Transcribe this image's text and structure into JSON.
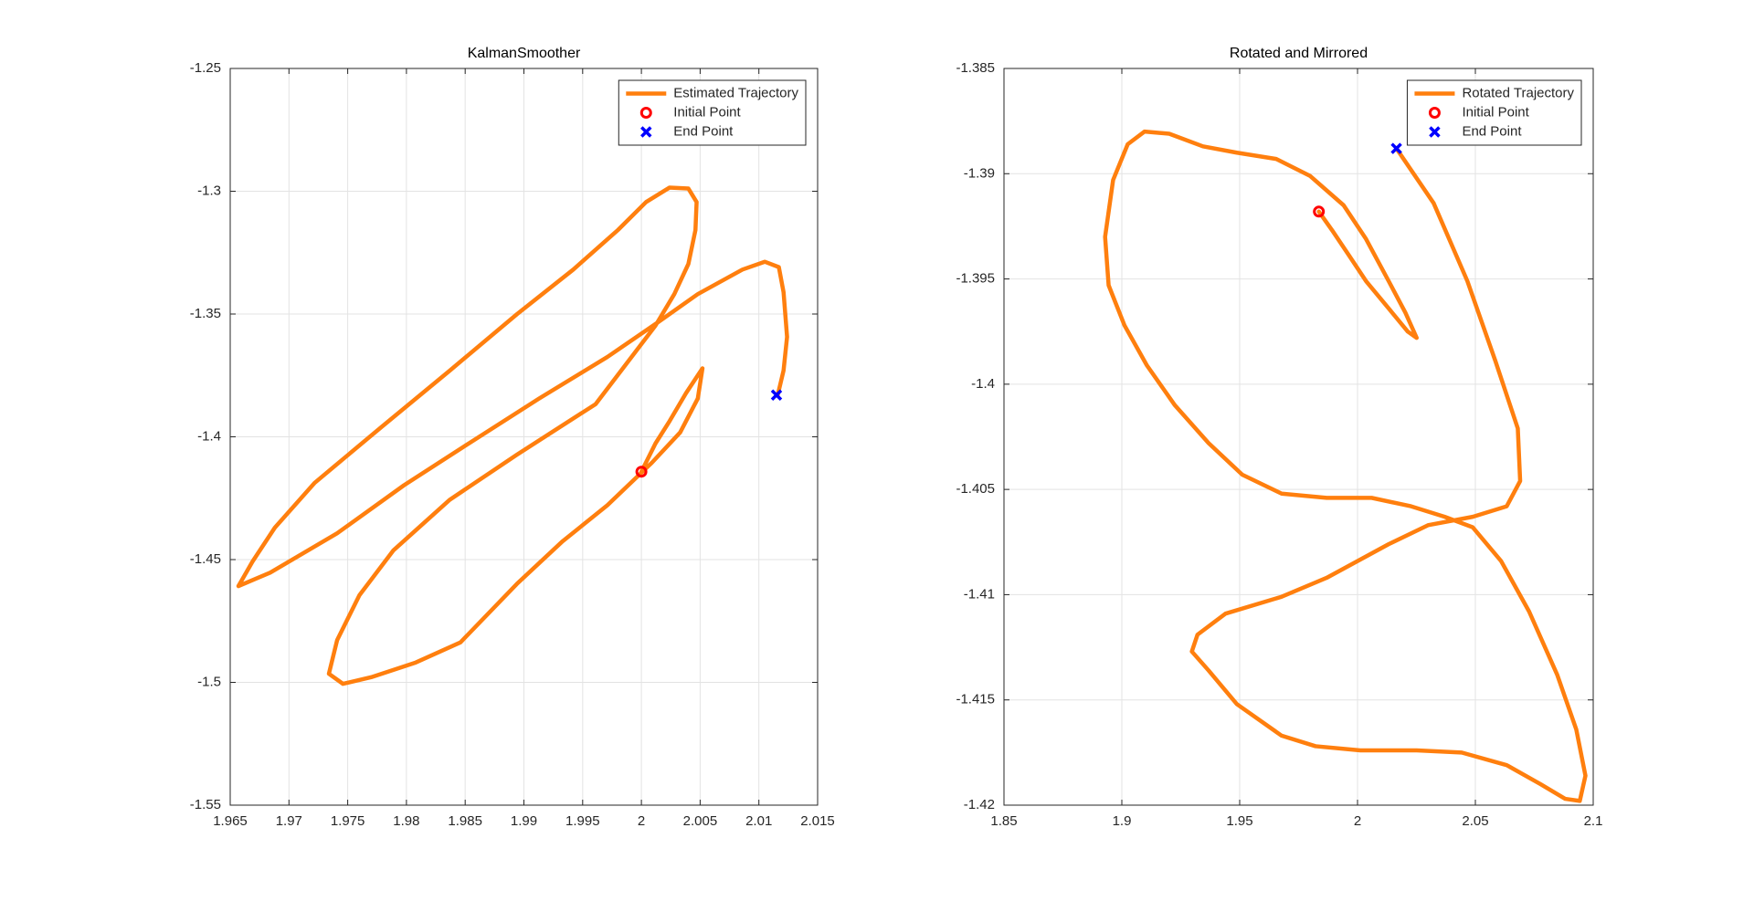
{
  "chart_data": [
    {
      "type": "line",
      "title": "KalmanSmoother",
      "grid": true,
      "legend": "northeast",
      "xlim": [
        1.965,
        2.015
      ],
      "xticks": [
        1.965,
        1.97,
        1.975,
        1.98,
        1.985,
        1.99,
        1.995,
        2,
        2.005,
        2.01,
        2.015
      ],
      "ylim": [
        -1.55,
        -1.25
      ],
      "yticks": [
        -1.55,
        -1.5,
        -1.45,
        -1.4,
        -1.35,
        -1.3,
        -1.25
      ],
      "series": [
        {
          "name": "Estimated Trajectory",
          "color": "#ff7f0e",
          "marker": "none",
          "x": [
            2.0,
            2.0012,
            2.0024,
            2.0038,
            2.0052,
            2.0048,
            2.0033,
            2.0009,
            1.9971,
            1.9933,
            1.9894,
            1.9846,
            1.9808,
            1.977,
            1.9746,
            1.9734,
            1.9741,
            1.976,
            1.9789,
            1.9837,
            1.9894,
            1.9961,
            2.0012,
            2.0028,
            2.004,
            2.0046,
            2.0047,
            2.004,
            2.0024,
            2.0004,
            1.998,
            1.9942,
            1.9894,
            1.9837,
            1.9779,
            1.9722,
            1.9688,
            1.9669,
            1.9657,
            1.9684,
            1.9741,
            1.9798,
            1.9856,
            1.9913,
            1.9971,
            2.0014,
            2.0048,
            2.0086,
            2.0105,
            2.0117,
            2.0121,
            2.0124,
            2.0121,
            2.0116
          ],
          "values": [
            -1.4142,
            -1.4027,
            -1.3936,
            -1.3822,
            -1.3721,
            -1.3844,
            -1.3982,
            -1.4105,
            -1.4279,
            -1.4425,
            -1.4599,
            -1.4837,
            -1.4919,
            -1.4979,
            -1.5006,
            -1.4965,
            -1.4828,
            -1.4645,
            -1.4462,
            -1.4256,
            -1.4073,
            -1.3867,
            -1.3547,
            -1.3419,
            -1.3296,
            -1.3158,
            -1.3044,
            -1.2989,
            -1.2985,
            -1.3044,
            -1.3158,
            -1.3319,
            -1.3501,
            -1.373,
            -1.3959,
            -1.4187,
            -1.437,
            -1.4508,
            -1.4608,
            -1.4553,
            -1.4393,
            -1.4197,
            -1.4018,
            -1.3844,
            -1.3675,
            -1.3534,
            -1.3419,
            -1.3319,
            -1.3287,
            -1.3309,
            -1.3411,
            -1.3593,
            -1.373,
            -1.3831
          ]
        },
        {
          "name": "Initial Point",
          "color": "#ff0000",
          "marker": "o",
          "x": [
            2.0
          ],
          "values": [
            -1.4142
          ]
        },
        {
          "name": "End Point",
          "color": "#0000ff",
          "marker": "x",
          "x": [
            2.0115
          ],
          "values": [
            -1.383
          ]
        }
      ]
    },
    {
      "type": "line",
      "title": "Rotated and Mirrored",
      "grid": true,
      "legend": "northeast",
      "xlim": [
        1.85,
        2.1
      ],
      "xticks": [
        1.85,
        1.9,
        1.95,
        2,
        2.05,
        2.1
      ],
      "ylim": [
        -1.42,
        -1.385
      ],
      "yticks": [
        -1.42,
        -1.415,
        -1.41,
        -1.405,
        -1.4,
        -1.395,
        -1.39,
        -1.385
      ],
      "series": [
        {
          "name": "Rotated Trajectory",
          "color": "#ff7f0e",
          "marker": "none",
          "x": [
            1.9836,
            1.9893,
            1.9965,
            2.0036,
            2.0132,
            2.0213,
            2.0251,
            2.0203,
            2.0132,
            2.0036,
            1.9941,
            1.9798,
            1.9655,
            1.9488,
            1.9344,
            1.9201,
            1.9096,
            1.9025,
            1.8963,
            1.8929,
            1.8944,
            1.9011,
            1.9106,
            1.9225,
            1.9368,
            1.9511,
            1.9678,
            1.9869,
            2.006,
            2.0227,
            2.037,
            2.0489,
            2.0609,
            2.0728,
            2.0847,
            2.0928,
            2.0967,
            2.0943,
            2.0881,
            2.0776,
            2.0633,
            2.0442,
            2.0251,
            2.0012,
            1.9822,
            1.9678,
            1.9488,
            1.9368,
            1.9297,
            1.9321,
            1.944,
            1.9678,
            1.9869,
            2.0132,
            2.0299,
            2.0489,
            2.0633,
            2.069,
            2.068,
            2.0585,
            2.0466,
            2.0323,
            2.0165
          ],
          "values": [
            -1.3918,
            -1.3927,
            -1.3939,
            -1.3951,
            -1.3964,
            -1.3975,
            -1.3978,
            -1.3966,
            -1.3951,
            -1.3931,
            -1.3915,
            -1.3901,
            -1.3893,
            -1.389,
            -1.3887,
            -1.3881,
            -1.388,
            -1.3886,
            -1.3903,
            -1.393,
            -1.3953,
            -1.3972,
            -1.3991,
            -1.401,
            -1.4028,
            -1.4043,
            -1.4052,
            -1.4054,
            -1.4054,
            -1.4058,
            -1.4063,
            -1.4068,
            -1.4084,
            -1.4108,
            -1.4138,
            -1.4164,
            -1.4186,
            -1.4198,
            -1.4197,
            -1.419,
            -1.4181,
            -1.4175,
            -1.4174,
            -1.4174,
            -1.4172,
            -1.4167,
            -1.4152,
            -1.4136,
            -1.4127,
            -1.4119,
            -1.4109,
            -1.4101,
            -1.4092,
            -1.4076,
            -1.4067,
            -1.4063,
            -1.4058,
            -1.4046,
            -1.4021,
            -1.3989,
            -1.3951,
            -1.3914,
            -1.3888
          ]
        },
        {
          "name": "Initial Point",
          "color": "#ff0000",
          "marker": "o",
          "x": [
            1.9836
          ],
          "values": [
            -1.3918
          ]
        },
        {
          "name": "End Point",
          "color": "#0000ff",
          "marker": "x",
          "x": [
            2.0165
          ],
          "values": [
            -1.3888
          ]
        }
      ]
    }
  ]
}
